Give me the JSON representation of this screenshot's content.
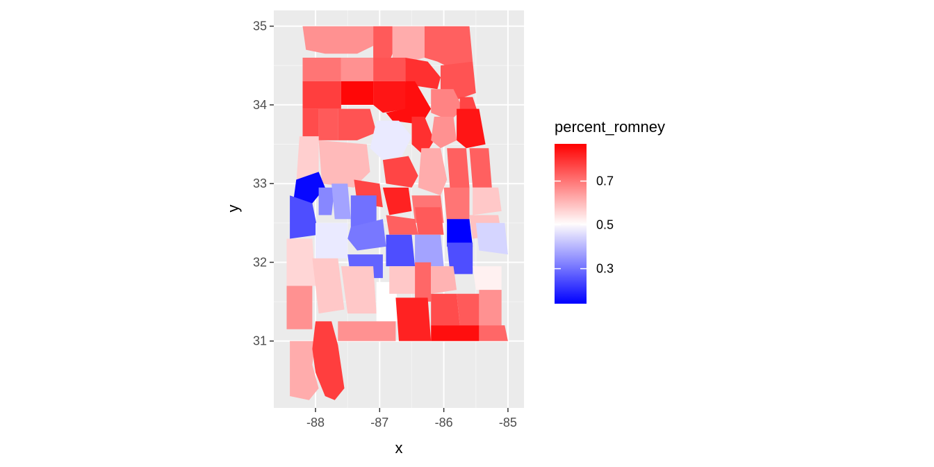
{
  "chart_data": {
    "type": "choropleth",
    "region": "Alabama counties",
    "xlabel": "x",
    "ylabel": "y",
    "x_ticks": [
      "-88",
      "-87",
      "-86",
      "-85"
    ],
    "y_ticks": [
      "31",
      "32",
      "33",
      "34",
      "35"
    ],
    "xlim": [
      -88.65,
      -84.75
    ],
    "ylim": [
      30.15,
      35.2
    ],
    "grid": true,
    "legend": {
      "title": "percent_romney",
      "position": "right",
      "labels": [
        "0.7",
        "0.5",
        "0.3"
      ],
      "range": [
        0.14,
        0.87
      ],
      "colors": {
        "low": "#0000ff",
        "mid": "#ffffff",
        "high": "#ff0000"
      },
      "midpoint": 0.5
    },
    "counties": [
      {
        "id": "lauderdale",
        "value": 0.66,
        "lon": [
          -88.2,
          -87.1,
          -87.1,
          -87.35,
          -87.6,
          -87.85,
          -88.15
        ],
        "lat": [
          35.0,
          35.0,
          34.75,
          34.65,
          34.65,
          34.65,
          34.7
        ]
      },
      {
        "id": "limestone",
        "value": 0.74,
        "lon": [
          -87.1,
          -86.8,
          -86.8,
          -86.85,
          -87.1
        ],
        "lat": [
          35.0,
          35.0,
          34.65,
          34.55,
          34.6
        ]
      },
      {
        "id": "madison",
        "value": 0.62,
        "lon": [
          -86.8,
          -86.3,
          -86.3,
          -86.55,
          -86.8
        ],
        "lat": [
          35.0,
          35.0,
          34.6,
          34.55,
          34.6
        ]
      },
      {
        "id": "jackson",
        "value": 0.73,
        "lon": [
          -86.3,
          -85.6,
          -85.55,
          -85.85,
          -86.1,
          -86.3
        ],
        "lat": [
          35.0,
          35.0,
          34.55,
          34.45,
          34.55,
          34.6
        ]
      },
      {
        "id": "colbert",
        "value": 0.7,
        "lon": [
          -88.2,
          -87.6,
          -87.6,
          -88.2
        ],
        "lat": [
          34.6,
          34.6,
          34.3,
          34.3
        ]
      },
      {
        "id": "lawrence",
        "value": 0.66,
        "lon": [
          -87.6,
          -87.1,
          -87.1,
          -87.6
        ],
        "lat": [
          34.6,
          34.6,
          34.3,
          34.3
        ]
      },
      {
        "id": "morgan",
        "value": 0.75,
        "lon": [
          -87.1,
          -86.6,
          -86.6,
          -87.1
        ],
        "lat": [
          34.6,
          34.6,
          34.3,
          34.3
        ]
      },
      {
        "id": "marshall",
        "value": 0.8,
        "lon": [
          -86.6,
          -86.25,
          -86.05,
          -86.1,
          -86.5,
          -86.6
        ],
        "lat": [
          34.6,
          34.55,
          34.35,
          34.2,
          34.25,
          34.3
        ]
      },
      {
        "id": "dekalb",
        "value": 0.75,
        "lon": [
          -86.05,
          -85.55,
          -85.5,
          -85.85,
          -86.05
        ],
        "lat": [
          34.5,
          34.55,
          34.15,
          34.05,
          34.2
        ]
      },
      {
        "id": "franklin",
        "value": 0.78,
        "lon": [
          -88.2,
          -87.6,
          -87.6,
          -88.2
        ],
        "lat": [
          34.3,
          34.3,
          33.95,
          33.95
        ]
      },
      {
        "id": "winston",
        "value": 0.86,
        "lon": [
          -87.6,
          -87.1,
          -87.1,
          -87.6
        ],
        "lat": [
          34.3,
          34.3,
          34.0,
          34.0
        ]
      },
      {
        "id": "cullman",
        "value": 0.84,
        "lon": [
          -87.1,
          -86.6,
          -86.55,
          -86.95,
          -87.1
        ],
        "lat": [
          34.3,
          34.3,
          33.95,
          33.9,
          34.0
        ]
      },
      {
        "id": "blount",
        "value": 0.85,
        "lon": [
          -86.6,
          -86.45,
          -86.2,
          -86.35,
          -86.8,
          -86.9,
          -86.6
        ],
        "lat": [
          34.3,
          34.3,
          33.95,
          33.75,
          33.8,
          33.9,
          33.95
        ]
      },
      {
        "id": "etowah",
        "value": 0.68,
        "lon": [
          -86.2,
          -85.85,
          -85.7,
          -85.9,
          -86.2
        ],
        "lat": [
          34.2,
          34.2,
          33.95,
          33.8,
          33.9
        ]
      },
      {
        "id": "cherokee",
        "value": 0.77,
        "lon": [
          -85.75,
          -85.55,
          -85.45,
          -85.6,
          -85.75
        ],
        "lat": [
          34.1,
          34.1,
          33.85,
          33.75,
          33.85
        ]
      },
      {
        "id": "marion",
        "value": 0.76,
        "lon": [
          -88.2,
          -88.2,
          -87.95,
          -87.95
        ],
        "lat": [
          33.95,
          33.6,
          33.6,
          33.95
        ]
      },
      {
        "id": "fayette",
        "value": 0.74,
        "lon": [
          -87.95,
          -87.95,
          -87.65,
          -87.65
        ],
        "lat": [
          33.95,
          33.55,
          33.55,
          33.95
        ]
      },
      {
        "id": "walker",
        "value": 0.75,
        "lon": [
          -87.65,
          -87.15,
          -87.05,
          -87.35,
          -87.65
        ],
        "lat": [
          33.95,
          33.95,
          33.65,
          33.55,
          33.55
        ]
      },
      {
        "id": "jefferson",
        "value": 0.47,
        "lon": [
          -87.05,
          -86.7,
          -86.5,
          -86.65,
          -86.95,
          -87.15
        ],
        "lat": [
          33.8,
          33.8,
          33.6,
          33.35,
          33.3,
          33.45
        ]
      },
      {
        "id": "st_clair",
        "value": 0.8,
        "lon": [
          -86.5,
          -86.3,
          -86.15,
          -86.3,
          -86.5
        ],
        "lat": [
          33.85,
          33.85,
          33.55,
          33.35,
          33.5
        ]
      },
      {
        "id": "calhoun",
        "value": 0.66,
        "lon": [
          -86.15,
          -85.85,
          -85.8,
          -86.05,
          -86.2
        ],
        "lat": [
          33.85,
          33.85,
          33.55,
          33.45,
          33.55
        ]
      },
      {
        "id": "cleburne",
        "value": 0.84,
        "lon": [
          -85.8,
          -85.45,
          -85.35,
          -85.65,
          -85.8
        ],
        "lat": [
          33.95,
          33.95,
          33.5,
          33.45,
          33.55
        ]
      },
      {
        "id": "lamar",
        "value": 0.57,
        "lon": [
          -88.25,
          -87.95,
          -87.95,
          -88.3
        ],
        "lat": [
          33.6,
          33.6,
          33.0,
          33.0
        ]
      },
      {
        "id": "tuscaloosa",
        "value": 0.6,
        "lon": [
          -87.95,
          -87.2,
          -87.15,
          -87.4,
          -87.9
        ],
        "lat": [
          33.55,
          33.5,
          33.15,
          32.95,
          33.0
        ]
      },
      {
        "id": "shelby",
        "value": 0.77,
        "lon": [
          -86.95,
          -86.55,
          -86.4,
          -86.5,
          -86.9
        ],
        "lat": [
          33.3,
          33.35,
          33.1,
          32.95,
          33.0
        ]
      },
      {
        "id": "talladega",
        "value": 0.62,
        "lon": [
          -86.35,
          -86.05,
          -85.95,
          -86.05,
          -86.4
        ],
        "lat": [
          33.45,
          33.45,
          33.05,
          32.85,
          32.95
        ]
      },
      {
        "id": "clay",
        "value": 0.73,
        "lon": [
          -85.95,
          -85.65,
          -85.6,
          -85.9
        ],
        "lat": [
          33.45,
          33.45,
          32.95,
          32.9
        ]
      },
      {
        "id": "randolph",
        "value": 0.73,
        "lon": [
          -85.6,
          -85.3,
          -85.25,
          -85.55
        ],
        "lat": [
          33.45,
          33.45,
          32.95,
          32.95
        ]
      },
      {
        "id": "pickens",
        "value": 0.15,
        "lon": [
          -88.3,
          -87.95,
          -87.85,
          -88.05,
          -88.35
        ],
        "lat": [
          33.05,
          33.15,
          32.95,
          32.75,
          32.75
        ]
      },
      {
        "id": "greene",
        "value": 0.33,
        "lon": [
          -87.95,
          -87.7,
          -87.75,
          -87.95
        ],
        "lat": [
          32.95,
          32.95,
          32.6,
          32.6
        ]
      },
      {
        "id": "hale",
        "value": 0.37,
        "lon": [
          -87.75,
          -87.5,
          -87.45,
          -87.7
        ],
        "lat": [
          33.0,
          33.0,
          32.55,
          32.55
        ]
      },
      {
        "id": "bibb",
        "value": 0.77,
        "lon": [
          -87.4,
          -87.0,
          -86.95,
          -87.35
        ],
        "lat": [
          33.05,
          33.0,
          32.7,
          32.75
        ]
      },
      {
        "id": "chilton",
        "value": 0.82,
        "lon": [
          -86.95,
          -86.55,
          -86.5,
          -86.85
        ],
        "lat": [
          32.95,
          32.95,
          32.65,
          32.6
        ]
      },
      {
        "id": "coosa",
        "value": 0.7,
        "lon": [
          -86.5,
          -86.05,
          -86.0,
          -86.45
        ],
        "lat": [
          32.85,
          32.85,
          32.5,
          32.5
        ]
      },
      {
        "id": "tallapoosa",
        "value": 0.7,
        "lon": [
          -86.0,
          -85.6,
          -85.6,
          -85.95
        ],
        "lat": [
          32.95,
          32.95,
          32.5,
          32.5
        ]
      },
      {
        "id": "chambers",
        "value": 0.58,
        "lon": [
          -85.55,
          -85.15,
          -85.1,
          -85.55
        ],
        "lat": [
          32.95,
          32.95,
          32.65,
          32.6
        ]
      },
      {
        "id": "sumter",
        "value": 0.25,
        "lon": [
          -88.4,
          -88.05,
          -87.95,
          -88.4
        ],
        "lat": [
          32.85,
          32.75,
          32.35,
          32.3
        ]
      },
      {
        "id": "perry",
        "value": 0.3,
        "lon": [
          -87.45,
          -87.05,
          -87.05,
          -87.45
        ],
        "lat": [
          32.85,
          32.85,
          32.45,
          32.45
        ]
      },
      {
        "id": "dallas",
        "value": 0.31,
        "lon": [
          -87.45,
          -86.95,
          -86.9,
          -87.35,
          -87.5
        ],
        "lat": [
          32.45,
          32.55,
          32.2,
          32.15,
          32.3
        ]
      },
      {
        "id": "autauga",
        "value": 0.73,
        "lon": [
          -86.9,
          -86.45,
          -86.4,
          -86.85
        ],
        "lat": [
          32.6,
          32.55,
          32.35,
          32.35
        ]
      },
      {
        "id": "elmore",
        "value": 0.74,
        "lon": [
          -86.45,
          -86.05,
          -86.0,
          -86.4
        ],
        "lat": [
          32.7,
          32.7,
          32.35,
          32.35
        ]
      },
      {
        "id": "lee",
        "value": 0.59,
        "lon": [
          -85.6,
          -85.15,
          -85.1,
          -85.55
        ],
        "lat": [
          32.6,
          32.6,
          32.35,
          32.3
        ]
      },
      {
        "id": "macon",
        "value": 0.14,
        "lon": [
          -85.95,
          -85.6,
          -85.55,
          -85.95
        ],
        "lat": [
          32.55,
          32.55,
          32.2,
          32.2
        ]
      },
      {
        "id": "russell",
        "value": 0.44,
        "lon": [
          -85.5,
          -85.05,
          -85.0,
          -85.45
        ],
        "lat": [
          32.5,
          32.5,
          32.1,
          32.15
        ]
      },
      {
        "id": "marengo",
        "value": 0.47,
        "lon": [
          -88.0,
          -87.5,
          -87.5,
          -88.0
        ],
        "lat": [
          32.5,
          32.5,
          32.05,
          32.05
        ]
      },
      {
        "id": "wilcox",
        "value": 0.28,
        "lon": [
          -87.5,
          -86.95,
          -86.95,
          -87.45
        ],
        "lat": [
          32.1,
          32.1,
          31.8,
          31.8
        ]
      },
      {
        "id": "lowndes",
        "value": 0.25,
        "lon": [
          -86.9,
          -86.5,
          -86.45,
          -86.9
        ],
        "lat": [
          32.35,
          32.35,
          31.95,
          31.95
        ]
      },
      {
        "id": "montgomery",
        "value": 0.37,
        "lon": [
          -86.45,
          -86.05,
          -86.0,
          -86.45
        ],
        "lat": [
          32.35,
          32.35,
          31.95,
          31.95
        ]
      },
      {
        "id": "bullock",
        "value": 0.25,
        "lon": [
          -85.95,
          -85.55,
          -85.55,
          -85.9
        ],
        "lat": [
          32.25,
          32.25,
          31.85,
          31.85
        ]
      },
      {
        "id": "barbour",
        "value": 0.52,
        "lon": [
          -85.55,
          -85.1,
          -85.1,
          -85.5
        ],
        "lat": [
          31.95,
          31.95,
          31.65,
          31.65
        ]
      },
      {
        "id": "choctaw",
        "value": 0.56,
        "lon": [
          -88.45,
          -88.05,
          -88.0,
          -88.45
        ],
        "lat": [
          32.3,
          32.3,
          31.7,
          31.7
        ]
      },
      {
        "id": "clarke",
        "value": 0.58,
        "lon": [
          -88.05,
          -87.65,
          -87.55,
          -87.95
        ],
        "lat": [
          32.05,
          32.05,
          31.4,
          31.35
        ]
      },
      {
        "id": "monroe",
        "value": 0.58,
        "lon": [
          -87.6,
          -87.1,
          -87.05,
          -87.5
        ],
        "lat": [
          31.95,
          31.95,
          31.35,
          31.35
        ]
      },
      {
        "id": "conecuh",
        "value": 0.5,
        "lon": [
          -87.05,
          -86.75,
          -86.7,
          -87.05
        ],
        "lat": [
          31.75,
          31.75,
          31.25,
          31.25
        ]
      },
      {
        "id": "butler",
        "value": 0.58,
        "lon": [
          -86.85,
          -86.45,
          -86.45,
          -86.85
        ],
        "lat": [
          31.95,
          31.95,
          31.6,
          31.6
        ]
      },
      {
        "id": "crenshaw",
        "value": 0.72,
        "lon": [
          -86.45,
          -86.2,
          -86.2,
          -86.45
        ],
        "lat": [
          32.0,
          32.0,
          31.5,
          31.5
        ]
      },
      {
        "id": "pike",
        "value": 0.61,
        "lon": [
          -86.2,
          -85.85,
          -85.8,
          -86.2
        ],
        "lat": [
          31.95,
          31.95,
          31.65,
          31.6
        ]
      },
      {
        "id": "washington",
        "value": 0.66,
        "lon": [
          -88.45,
          -88.05,
          -88.05,
          -88.45
        ],
        "lat": [
          31.7,
          31.7,
          31.15,
          31.15
        ]
      },
      {
        "id": "escambia",
        "value": 0.66,
        "lon": [
          -87.65,
          -86.75,
          -86.75,
          -87.65
        ],
        "lat": [
          31.25,
          31.25,
          31.0,
          31.0
        ]
      },
      {
        "id": "covington",
        "value": 0.82,
        "lon": [
          -86.75,
          -86.25,
          -86.2,
          -86.7
        ],
        "lat": [
          31.55,
          31.55,
          31.0,
          31.0
        ]
      },
      {
        "id": "coffee",
        "value": 0.76,
        "lon": [
          -86.2,
          -85.8,
          -85.75,
          -86.2
        ],
        "lat": [
          31.6,
          31.6,
          31.2,
          31.2
        ]
      },
      {
        "id": "dale",
        "value": 0.74,
        "lon": [
          -85.8,
          -85.45,
          -85.45,
          -85.75
        ],
        "lat": [
          31.6,
          31.6,
          31.2,
          31.2
        ]
      },
      {
        "id": "henry",
        "value": 0.66,
        "lon": [
          -85.45,
          -85.1,
          -85.1,
          -85.45
        ],
        "lat": [
          31.65,
          31.65,
          31.2,
          31.2
        ]
      },
      {
        "id": "geneva",
        "value": 0.85,
        "lon": [
          -86.2,
          -85.45,
          -85.45,
          -86.2
        ],
        "lat": [
          31.2,
          31.2,
          31.0,
          31.0
        ]
      },
      {
        "id": "houston",
        "value": 0.72,
        "lon": [
          -85.45,
          -85.05,
          -85.0,
          -85.45
        ],
        "lat": [
          31.2,
          31.2,
          31.0,
          31.0
        ]
      },
      {
        "id": "mobile",
        "value": 0.62,
        "lon": [
          -88.4,
          -88.0,
          -88.05,
          -87.95,
          -88.1,
          -88.4
        ],
        "lat": [
          31.0,
          31.0,
          30.7,
          30.4,
          30.25,
          30.3
        ]
      },
      {
        "id": "baldwin",
        "value": 0.78,
        "lon": [
          -88.0,
          -87.75,
          -87.65,
          -87.55,
          -87.7,
          -87.85,
          -88.0,
          -88.05
        ],
        "lat": [
          31.25,
          31.25,
          30.95,
          30.4,
          30.25,
          30.3,
          30.6,
          30.9
        ]
      }
    ]
  }
}
